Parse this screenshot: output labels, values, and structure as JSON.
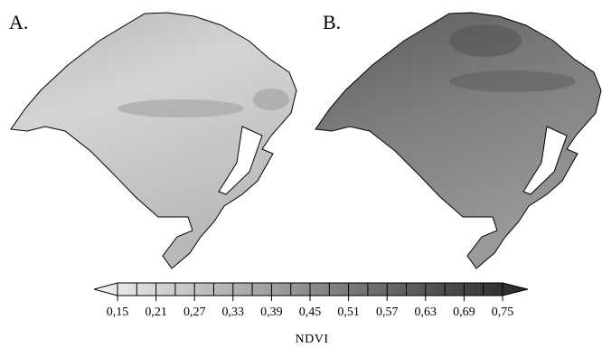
{
  "panels": [
    {
      "label": "A.",
      "shade_light": "#d4d4d4",
      "shade_mid": "#b8b8b8",
      "shade_dark": "#9e9e9e"
    },
    {
      "label": "B.",
      "shade_light": "#9a9a9a",
      "shade_mid": "#7d7d7d",
      "shade_dark": "#5a5a5a"
    }
  ],
  "legend": {
    "title": "NDVI",
    "ticks": [
      "0,15",
      "0,21",
      "0,27",
      "0,33",
      "0,39",
      "0,45",
      "0,51",
      "0,57",
      "0,63",
      "0,69",
      "0,75"
    ],
    "color_start": "#f2f2f2",
    "color_end": "#262626"
  }
}
